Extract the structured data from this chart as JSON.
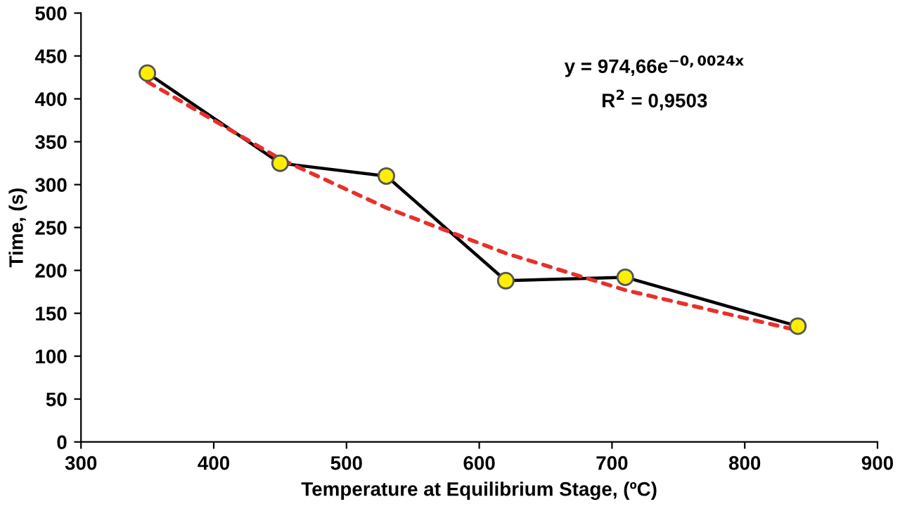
{
  "chart_data": {
    "type": "line",
    "xlabel": "Temperature at Equilibrium Stage, (ºC)",
    "ylabel": "Time, (s)",
    "xlim": [
      300,
      900
    ],
    "xticks": [
      300,
      400,
      500,
      600,
      700,
      800,
      900
    ],
    "ylim": [
      0,
      500
    ],
    "yticks": [
      0,
      50,
      100,
      150,
      200,
      250,
      300,
      350,
      400,
      450,
      500
    ],
    "grid": false,
    "legend": false,
    "series": [
      {
        "color": "#000000",
        "marker": "circle",
        "line_style": "solid",
        "x": [
          350,
          450,
          530,
          620,
          710,
          840
        ],
        "values": [
          430,
          325,
          310,
          188,
          192,
          135
        ]
      },
      {
        "color": "#e8302a",
        "marker": "none",
        "line_style": "dotted",
        "x": [
          350,
          450,
          530,
          620,
          710,
          840
        ],
        "values": [
          420,
          330,
          273,
          220,
          177,
          130
        ]
      }
    ],
    "annotations": [
      "y = 974,66e$^{−0,0024x}$",
      "R$^{2}$ = 0,9503"
    ]
  }
}
